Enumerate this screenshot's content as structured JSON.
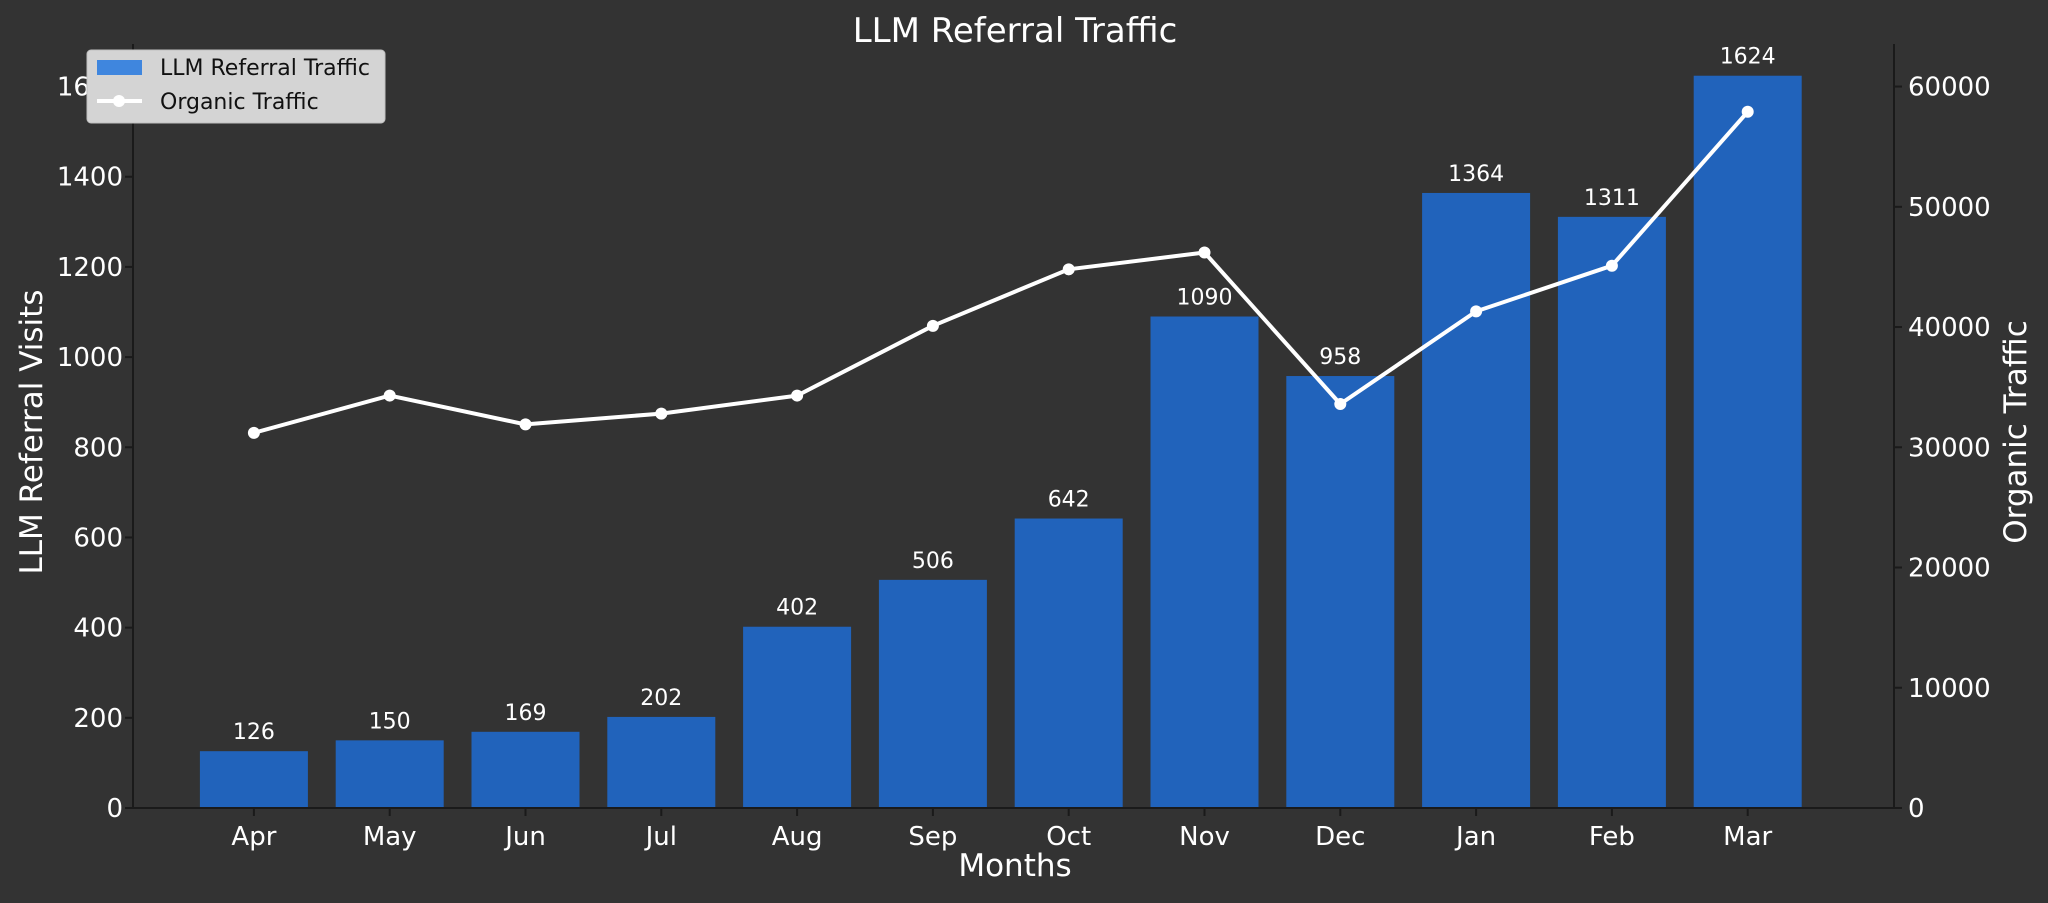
{
  "chart_data": {
    "type": "bar",
    "title": "LLM Referral Traffic",
    "xlabel": "Months",
    "ylabel": "LLM Referral Visits",
    "y2label": "Organic Traffic",
    "categories": [
      "Apr",
      "May",
      "Jun",
      "Jul",
      "Aug",
      "Sep",
      "Oct",
      "Nov",
      "Dec",
      "Jan",
      "Feb",
      "Mar"
    ],
    "series": [
      {
        "name": "LLM Referral Traffic",
        "type": "bar",
        "axis": "left",
        "color": "#2163bb",
        "legend_color": "#3f86de",
        "values": [
          126,
          150,
          169,
          202,
          402,
          506,
          642,
          1090,
          958,
          1364,
          1311,
          1624
        ]
      },
      {
        "name": "Organic Traffic",
        "type": "line",
        "axis": "right",
        "color": "#ffffff",
        "values": [
          31200,
          34300,
          31900,
          32800,
          34300,
          40100,
          44800,
          46200,
          33600,
          41300,
          45100,
          57900
        ]
      }
    ],
    "ylim": [
      0,
      1650
    ],
    "y_ticks": [
      0,
      200,
      400,
      600,
      800,
      1000,
      1200,
      1400,
      1600
    ],
    "y2lim": [
      0,
      61875
    ],
    "y2_ticks": [
      0,
      10000,
      20000,
      30000,
      40000,
      50000,
      60000
    ],
    "grid": false,
    "legend_position": "top-left",
    "colors": {
      "background": "#333333",
      "text": "#ffffff",
      "axis": "#1a1a1a",
      "legend_bg": "#d4d4d4",
      "legend_text": "#111111"
    }
  }
}
